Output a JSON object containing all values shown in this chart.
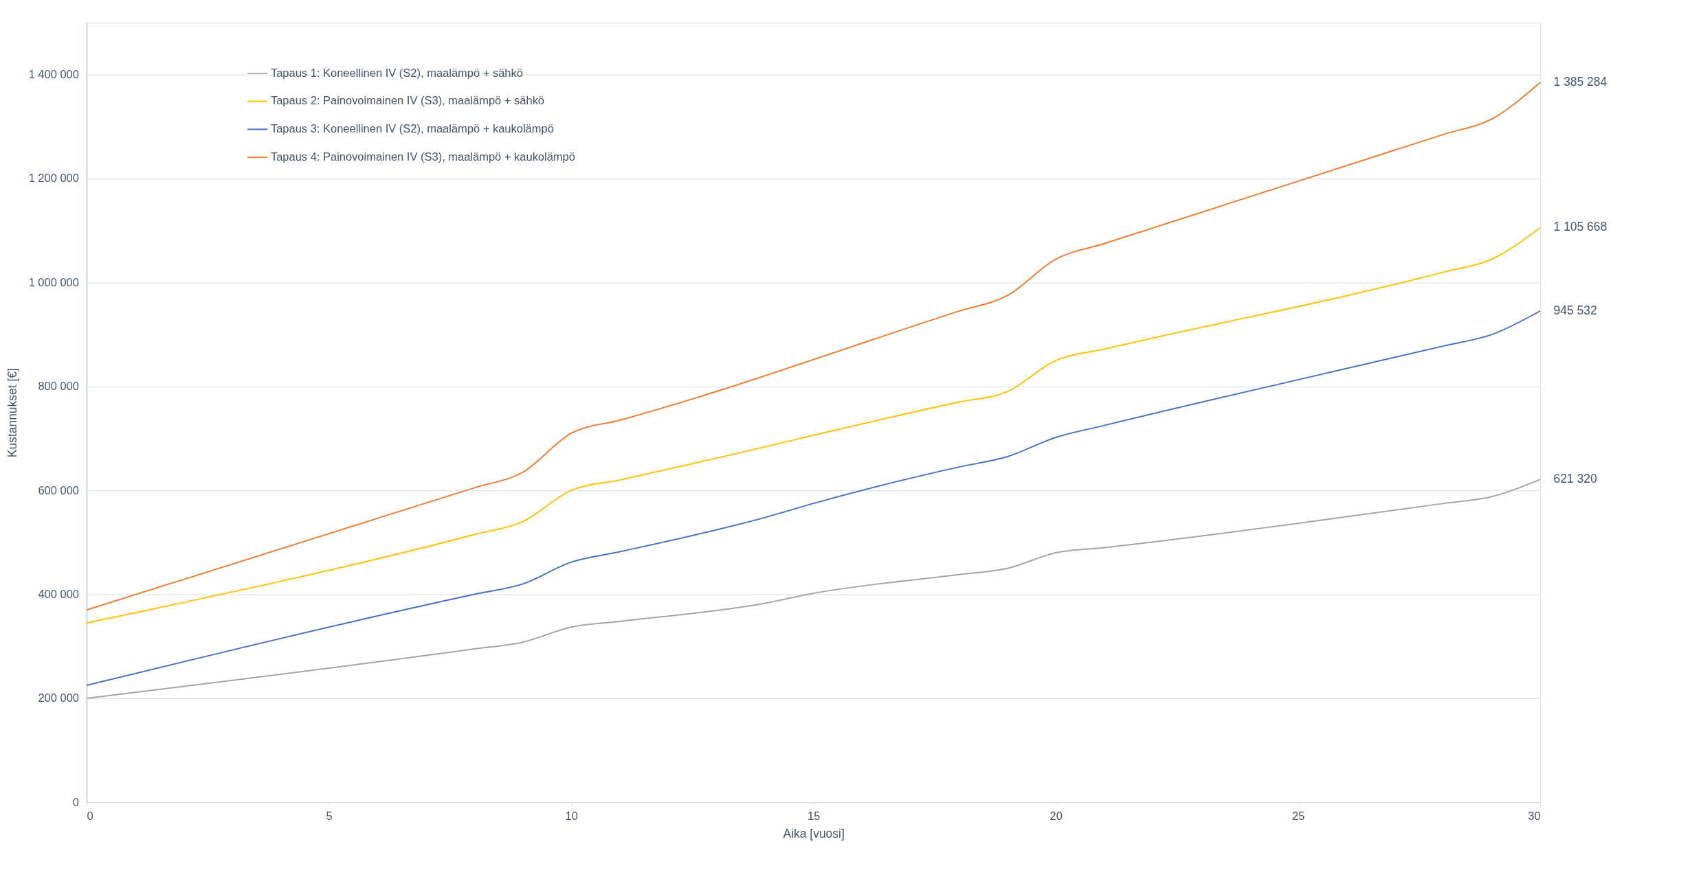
{
  "chart_data": {
    "type": "line",
    "xlabel": "Aika [vuosi]",
    "ylabel": "Kustannukset [€]",
    "xlim": [
      0,
      30
    ],
    "xticks": [
      0,
      5,
      10,
      15,
      20,
      25,
      30
    ],
    "ylim": [
      0,
      1500000
    ],
    "yticks": [
      {
        "value": 0,
        "label": "0"
      },
      {
        "value": 200000,
        "label": "200 000"
      },
      {
        "value": 400000,
        "label": "400 000"
      },
      {
        "value": 600000,
        "label": "600 000"
      },
      {
        "value": 800000,
        "label": "800 000"
      },
      {
        "value": 1000000,
        "label": "1 000 000"
      },
      {
        "value": 1200000,
        "label": "1 200 000"
      },
      {
        "value": 1400000,
        "label": "1 400 000"
      }
    ],
    "grid": "y",
    "legend": "top left",
    "marker": "none",
    "line_style": "solid",
    "series": [
      {
        "name": "Tapaus 1: Koneellinen IV (S2), maalämpö + sähkö",
        "color": "#a5a5a5",
        "x": [
          0,
          8,
          9,
          10,
          11,
          14,
          15,
          18,
          19,
          20,
          21,
          28,
          29,
          30
        ],
        "values": [
          200000,
          295000,
          308000,
          337000,
          348000,
          383000,
          402000,
          438000,
          450000,
          480000,
          490000,
          575000,
          588000,
          621320
        ],
        "value_labels": [
          null,
          null,
          null,
          null,
          null,
          null,
          null,
          null,
          null,
          null,
          null,
          null,
          null,
          "621 320"
        ]
      },
      {
        "name": "Tapaus 2: Painovoimainen IV (S3), maalämpö + sähkö",
        "color": "#ffc000",
        "x": [
          0,
          8,
          9,
          10,
          11,
          18,
          19,
          20,
          21,
          28,
          29,
          30
        ],
        "values": [
          345000,
          515000,
          540000,
          600000,
          620000,
          770000,
          790000,
          850000,
          872000,
          1020000,
          1045000,
          1105668
        ],
        "value_labels": [
          null,
          null,
          null,
          null,
          null,
          null,
          null,
          null,
          null,
          null,
          null,
          "1 105 668"
        ]
      },
      {
        "name": "Tapaus 3: Koneellinen IV (S2), maalämpö + kaukolämpö",
        "color": "#4472c4",
        "x": [
          0,
          8,
          9,
          10,
          11,
          14,
          15,
          18,
          19,
          20,
          21,
          28,
          29,
          30
        ],
        "values": [
          225000,
          400000,
          420000,
          462000,
          482000,
          548000,
          575000,
          645000,
          665000,
          702000,
          725000,
          878000,
          900000,
          945532
        ],
        "value_labels": [
          null,
          null,
          null,
          null,
          null,
          null,
          null,
          null,
          null,
          null,
          null,
          null,
          null,
          "945 532"
        ]
      },
      {
        "name": "Tapaus 4: Painovoimainen IV (S3), maalämpö + kaukolämpö",
        "color": "#ed7d31",
        "x": [
          0,
          8,
          9,
          10,
          11,
          18,
          19,
          20,
          21,
          28,
          29,
          30
        ],
        "values": [
          370000,
          605000,
          635000,
          710000,
          735000,
          945000,
          975000,
          1045000,
          1075000,
          1285000,
          1315000,
          1385284
        ],
        "value_labels": [
          null,
          null,
          null,
          null,
          null,
          null,
          null,
          null,
          null,
          null,
          null,
          "1 385 284"
        ]
      }
    ]
  }
}
